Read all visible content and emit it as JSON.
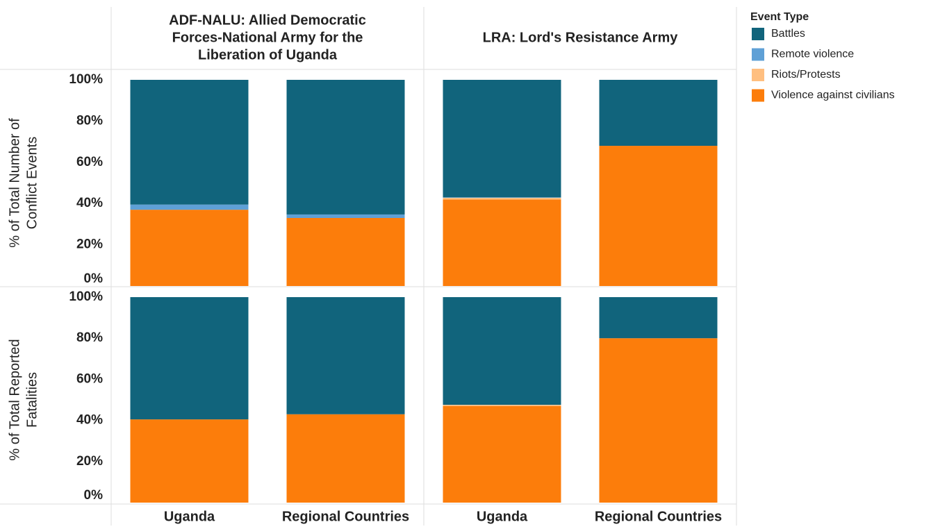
{
  "chart_data": {
    "type": "bar",
    "stacked": true,
    "legend_title": "Event Type",
    "groups": [
      [
        "ADF-NALU: Allied Democratic",
        "Forces-National Army for the",
        "Liberation of Uganda"
      ],
      [
        "LRA: Lord's Resistance Army"
      ]
    ],
    "rows": [
      [
        "% of Total Number of",
        "Conflict Events"
      ],
      [
        "% of Total Reported",
        "Fatalities"
      ]
    ],
    "categories": [
      "Uganda",
      "Regional Countries"
    ],
    "ylim": [
      0,
      100
    ],
    "yticks": [
      {
        "value": 0,
        "label": "0%"
      },
      {
        "value": 20,
        "label": "20%"
      },
      {
        "value": 40,
        "label": "40%"
      },
      {
        "value": 60,
        "label": "60%"
      },
      {
        "value": 80,
        "label": "80%"
      },
      {
        "value": 100,
        "label": "100%"
      }
    ],
    "series": [
      {
        "name": "Violence against civilians",
        "color": "#fc7d0b",
        "values": [
          [
            [
              37,
              33
            ],
            [
              42,
              68
            ]
          ],
          [
            [
              40.5,
              43
            ],
            [
              47,
              80
            ]
          ]
        ]
      },
      {
        "name": "Riots/Protests",
        "color": "#ffbf80",
        "values": [
          [
            [
              0,
              0
            ],
            [
              0.8,
              0
            ]
          ],
          [
            [
              0,
              0
            ],
            [
              0.6,
              0
            ]
          ]
        ]
      },
      {
        "name": "Remote violence",
        "color": "#5fa0d6",
        "values": [
          [
            [
              2.5,
              1.7
            ],
            [
              0.2,
              0
            ]
          ],
          [
            [
              0,
              0
            ],
            [
              0,
              0
            ]
          ]
        ]
      },
      {
        "name": "Battles",
        "color": "#11647c",
        "values": [
          [
            [
              60.5,
              65.3
            ],
            [
              57,
              32
            ]
          ],
          [
            [
              59.5,
              57
            ],
            [
              52.4,
              20
            ]
          ]
        ]
      }
    ]
  }
}
